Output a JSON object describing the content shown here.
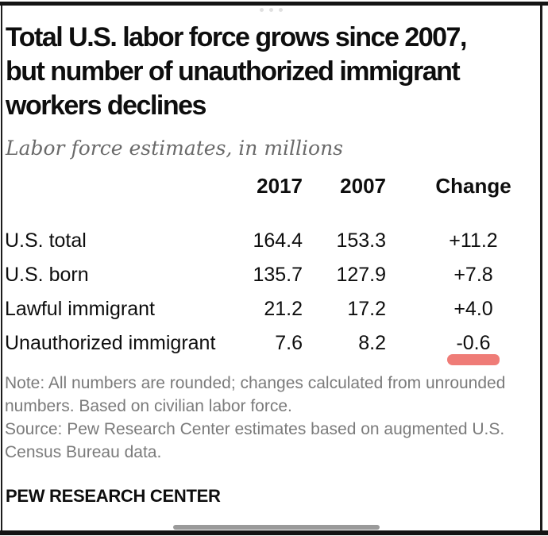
{
  "colors": {
    "frame_black": "#141414",
    "text_black": "#0E0E0E",
    "subtitle_gray": "#6A6A6A",
    "note_gray": "#7B7B7B",
    "marker_red": "#ED6A64",
    "scrollbar_gray": "#9A9A9A"
  },
  "viewer": {
    "ellipsis_icon": "three-dots",
    "scrollbar_present": true
  },
  "figure": {
    "title": "Total U.S. labor force grows since 2007, but number of unauthorized immigrant workers declines",
    "title_lines": [
      "Total U.S. labor force grows since 2007,",
      "but number of unauthorized immigrant",
      "workers declines"
    ],
    "subtitle": "Labor force estimates, in millions",
    "table": {
      "columns": [
        "2017",
        "2007",
        "Change"
      ],
      "rows": [
        {
          "label": "U.S. total",
          "v2017": "164.4",
          "v2007": "153.3",
          "change": "+11.2"
        },
        {
          "label": "U.S. born",
          "v2017": "135.7",
          "v2007": "127.9",
          "change": "+7.8"
        },
        {
          "label": "Lawful immigrant",
          "v2017": "21.2",
          "v2007": "17.2",
          "change": "+4.0"
        },
        {
          "label": "Unauthorized immigrant",
          "v2017": "7.6",
          "v2007": "8.2",
          "change": "-0.6"
        }
      ],
      "highlight": {
        "row": "Unauthorized immigrant",
        "column": "Change",
        "style": "red-marker-underline"
      }
    },
    "note_lines": [
      "Note: All numbers are rounded; changes calculated from unrounded",
      "numbers. Based on civilian labor force."
    ],
    "source_lines": [
      "Source: Pew Research Center estimates based on augmented U.S.",
      "Census Bureau data."
    ],
    "wordmark": "PEW RESEARCH CENTER"
  },
  "chart_data": {
    "type": "table",
    "title": "Total U.S. labor force grows since 2007, but number of unauthorized immigrant workers declines",
    "subtitle": "Labor force estimates, in millions",
    "columns": [
      "2017",
      "2007",
      "Change"
    ],
    "categories": [
      "U.S. total",
      "U.S. born",
      "Lawful immigrant",
      "Unauthorized immigrant"
    ],
    "series": [
      {
        "name": "2017",
        "values": [
          164.4,
          135.7,
          21.2,
          7.6
        ]
      },
      {
        "name": "2007",
        "values": [
          153.3,
          127.9,
          17.2,
          8.2
        ]
      },
      {
        "name": "Change",
        "values": [
          "+11.2",
          "+7.8",
          "+4.0",
          "-0.6"
        ]
      }
    ],
    "annotations": [
      {
        "target": "Unauthorized immigrant Change value -0.6",
        "type": "red-marker-underline"
      }
    ]
  }
}
